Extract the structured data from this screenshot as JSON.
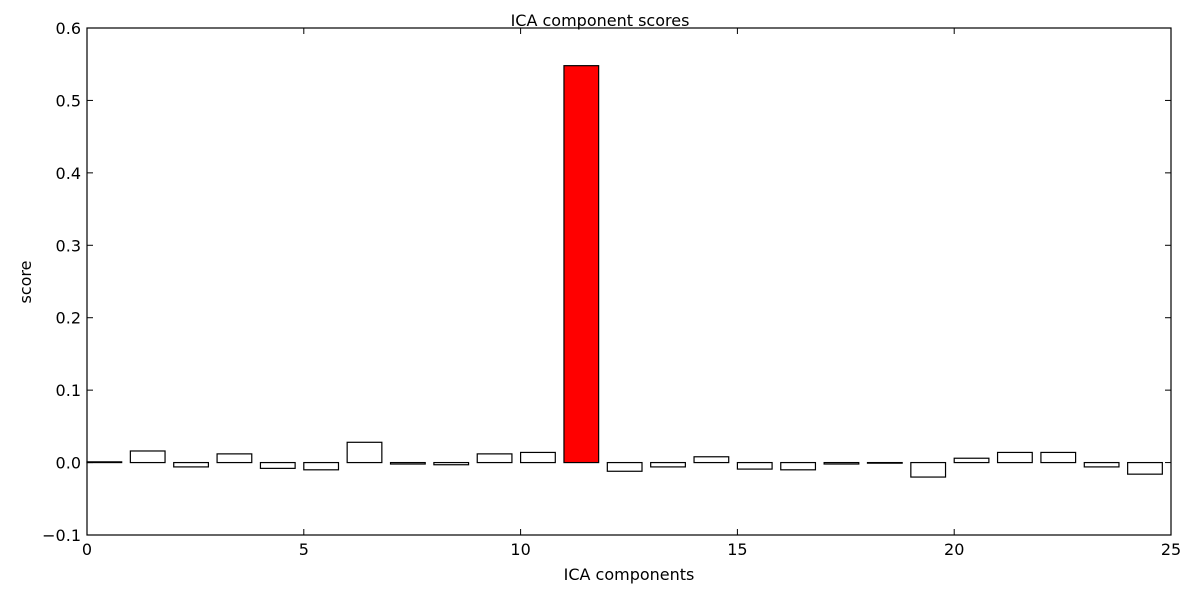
{
  "chart_data": {
    "type": "bar",
    "title": "ICA component scores",
    "xlabel": "ICA components",
    "ylabel": "score",
    "xlim": [
      0,
      25
    ],
    "ylim": [
      -0.1,
      0.6
    ],
    "xticks": [
      0,
      5,
      10,
      15,
      20,
      25
    ],
    "yticks": [
      -0.1,
      0.0,
      0.1,
      0.2,
      0.3,
      0.4,
      0.5,
      0.6
    ],
    "ytick_labels": [
      "−0.1",
      "0.0",
      "0.1",
      "0.2",
      "0.3",
      "0.4",
      "0.5",
      "0.6"
    ],
    "grid": false,
    "bar_width": 0.8,
    "x": [
      0,
      1,
      2,
      3,
      4,
      5,
      6,
      7,
      8,
      9,
      10,
      11,
      12,
      13,
      14,
      15,
      16,
      17,
      18,
      19,
      20,
      21,
      22,
      23,
      24
    ],
    "values": [
      0.001,
      0.016,
      -0.006,
      0.012,
      -0.008,
      -0.01,
      0.028,
      -0.002,
      -0.003,
      0.012,
      0.014,
      0.548,
      -0.012,
      -0.006,
      0.008,
      -0.009,
      -0.01,
      -0.002,
      0.0,
      -0.02,
      0.006,
      0.014,
      0.014,
      -0.006,
      -0.016
    ],
    "highlight_index": 11,
    "colors": {
      "default_fill": "#ffffff",
      "highlight_fill": "#ff0000",
      "edge": "#000000"
    }
  }
}
